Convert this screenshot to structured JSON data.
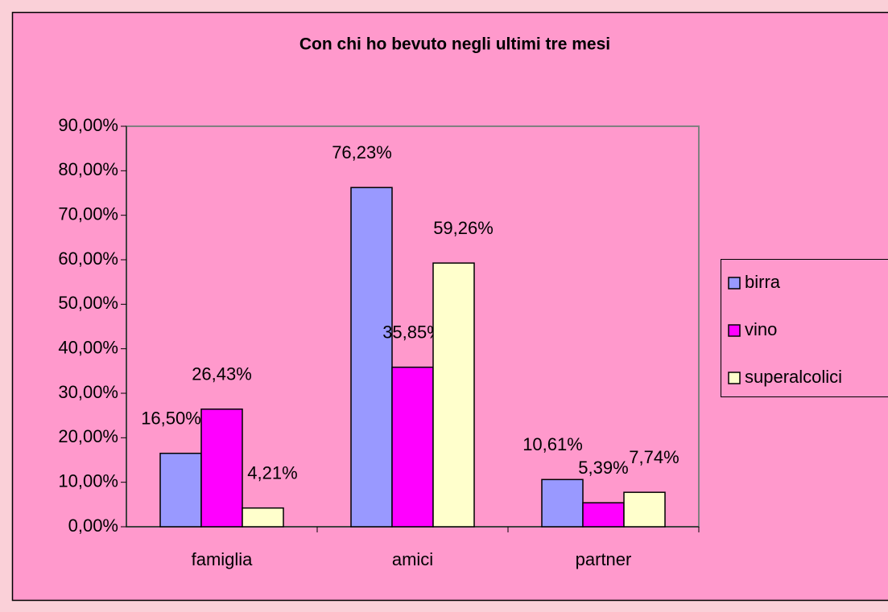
{
  "chart_data": {
    "type": "bar",
    "title": "Con chi ho bevuto negli ultimi tre mesi",
    "categories": [
      "famiglia",
      "amici",
      "partner"
    ],
    "series": [
      {
        "name": "birra",
        "color": "#9999ff",
        "values": [
          16.5,
          76.23,
          10.61
        ],
        "value_labels": [
          "16,50%",
          "76,23%",
          "10,61%"
        ]
      },
      {
        "name": "vino",
        "color": "#ff00ff",
        "values": [
          26.43,
          35.85,
          5.39
        ],
        "value_labels": [
          "26,43%",
          "35,85%",
          "5,39%"
        ]
      },
      {
        "name": "superalcolici",
        "color": "#ffffcc",
        "values": [
          4.21,
          59.26,
          7.74
        ],
        "value_labels": [
          "4,21%",
          "59,26%",
          "7,74%"
        ]
      }
    ],
    "ylim": [
      0,
      90
    ],
    "yticks": [
      {
        "value": 0,
        "label": "0,00%"
      },
      {
        "value": 10,
        "label": "10,00%"
      },
      {
        "value": 20,
        "label": "20,00%"
      },
      {
        "value": 30,
        "label": "30,00%"
      },
      {
        "value": 40,
        "label": "40,00%"
      },
      {
        "value": 50,
        "label": "50,00%"
      },
      {
        "value": 60,
        "label": "60,00%"
      },
      {
        "value": 70,
        "label": "70,00%"
      },
      {
        "value": 80,
        "label": "80,00%"
      },
      {
        "value": 90,
        "label": "90,00%"
      }
    ],
    "legend": "right"
  }
}
